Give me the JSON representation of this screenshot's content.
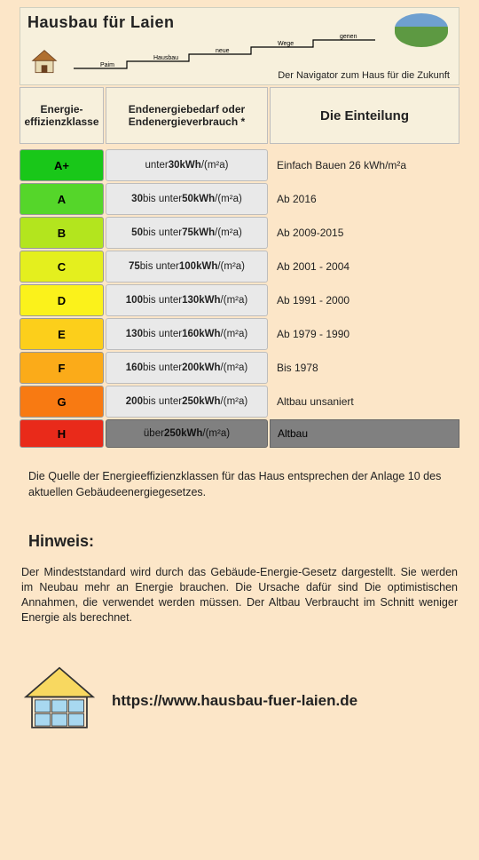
{
  "header": {
    "site_title": "Hausbau für Laien",
    "tagline": "Der Navigator zum Haus für die Zukunft",
    "stair_labels": [
      "Paim",
      "Hausbau",
      "neue",
      "Wege",
      "gehen"
    ]
  },
  "columns": {
    "col1": "Energie-\neffizienzklasse",
    "col2": "Endenergiebedarf oder\nEndenergieverbrauch *",
    "col3": "Die Einteilung"
  },
  "rows": [
    {
      "class": "A+",
      "usage": "unter 30 kWh/(m²a)",
      "era": "Einfach Bauen 26 kWh/m²a",
      "color": "#19c719"
    },
    {
      "class": "A",
      "usage": "30 bis unter 50 kWh/(m²a)",
      "era": "Ab 2016",
      "color": "#55d62a"
    },
    {
      "class": "B",
      "usage": "50 bis unter 75 kWh/(m²a)",
      "era": "Ab 2009-2015",
      "color": "#b3e51e"
    },
    {
      "class": "C",
      "usage": "75 bis unter 100 kWh/(m²a)",
      "era": "Ab 2001 - 2004",
      "color": "#e4ef1e"
    },
    {
      "class": "D",
      "usage": "100 bis unter 130 kWh/(m²a)",
      "era": "Ab 1991 - 2000",
      "color": "#fbf21b"
    },
    {
      "class": "E",
      "usage": "130 bis unter 160 kWh/(m²a)",
      "era": "Ab 1979 - 1990",
      "color": "#fccf1b"
    },
    {
      "class": "F",
      "usage": "160 bis unter 200 kWh/(m²a)",
      "era": "Bis 1978",
      "color": "#fbab19"
    },
    {
      "class": "G",
      "usage": "200 bis unter 250 kWh/(m²a)",
      "era": "Altbau unsaniert",
      "color": "#f87a12"
    },
    {
      "class": "H",
      "usage": "über 250 kWh/(m²a)",
      "era": "Altbau",
      "color": "#e92a1a"
    }
  ],
  "source": "Die Quelle der Energieeffizienzklassen für das Haus entsprechen der Anlage 10 des aktuellen Gebäudeenergiegesetzes.",
  "hinweis": {
    "title": "Hinweis:",
    "body": "Der Mindeststandard wird durch das Gebäude-Energie-Gesetz dargestellt. Sie werden im Neubau mehr an Energie brauchen. Die Ursache dafür sind Die optimistischen Annahmen, die verwendet werden müssen. Der Altbau Verbraucht im Schnitt weniger Energie als berechnet."
  },
  "footer": {
    "url": "https://www.hausbau-fuer-laien.de"
  },
  "style": {
    "page_bg": "#fce6c8",
    "panel_bg": "#f7f0dc",
    "cell_bg": "#e9e9e9",
    "last_row_bg": "#808080"
  }
}
